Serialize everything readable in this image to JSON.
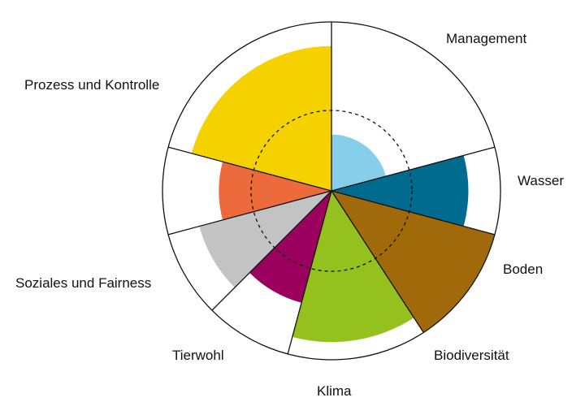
{
  "chart_data": {
    "type": "polar-area",
    "title": "",
    "max": 10,
    "reference_ring": 5,
    "categories": [
      {
        "label": "Management",
        "value": 3.5,
        "color": "#87ceeb"
      },
      {
        "label": "Wasser",
        "value": 8.5,
        "color": "#006b8f"
      },
      {
        "label": "Boden",
        "value": 10.5,
        "color": "#a06a0a"
      },
      {
        "label": "Biodiversität",
        "value": 9.4,
        "color": "#95c11f"
      },
      {
        "label": "Klima",
        "value": 7.2,
        "color": "#9b005f"
      },
      {
        "label": "Tierwohl",
        "value": 8.5,
        "color": "#c3c3c3"
      },
      {
        "label": "Soziales und Fairness",
        "value": 7.0,
        "color": "#ec6a3b"
      },
      {
        "label": "Prozess und Kontrolle",
        "value": 9.0,
        "color": "#f5d100"
      }
    ]
  }
}
